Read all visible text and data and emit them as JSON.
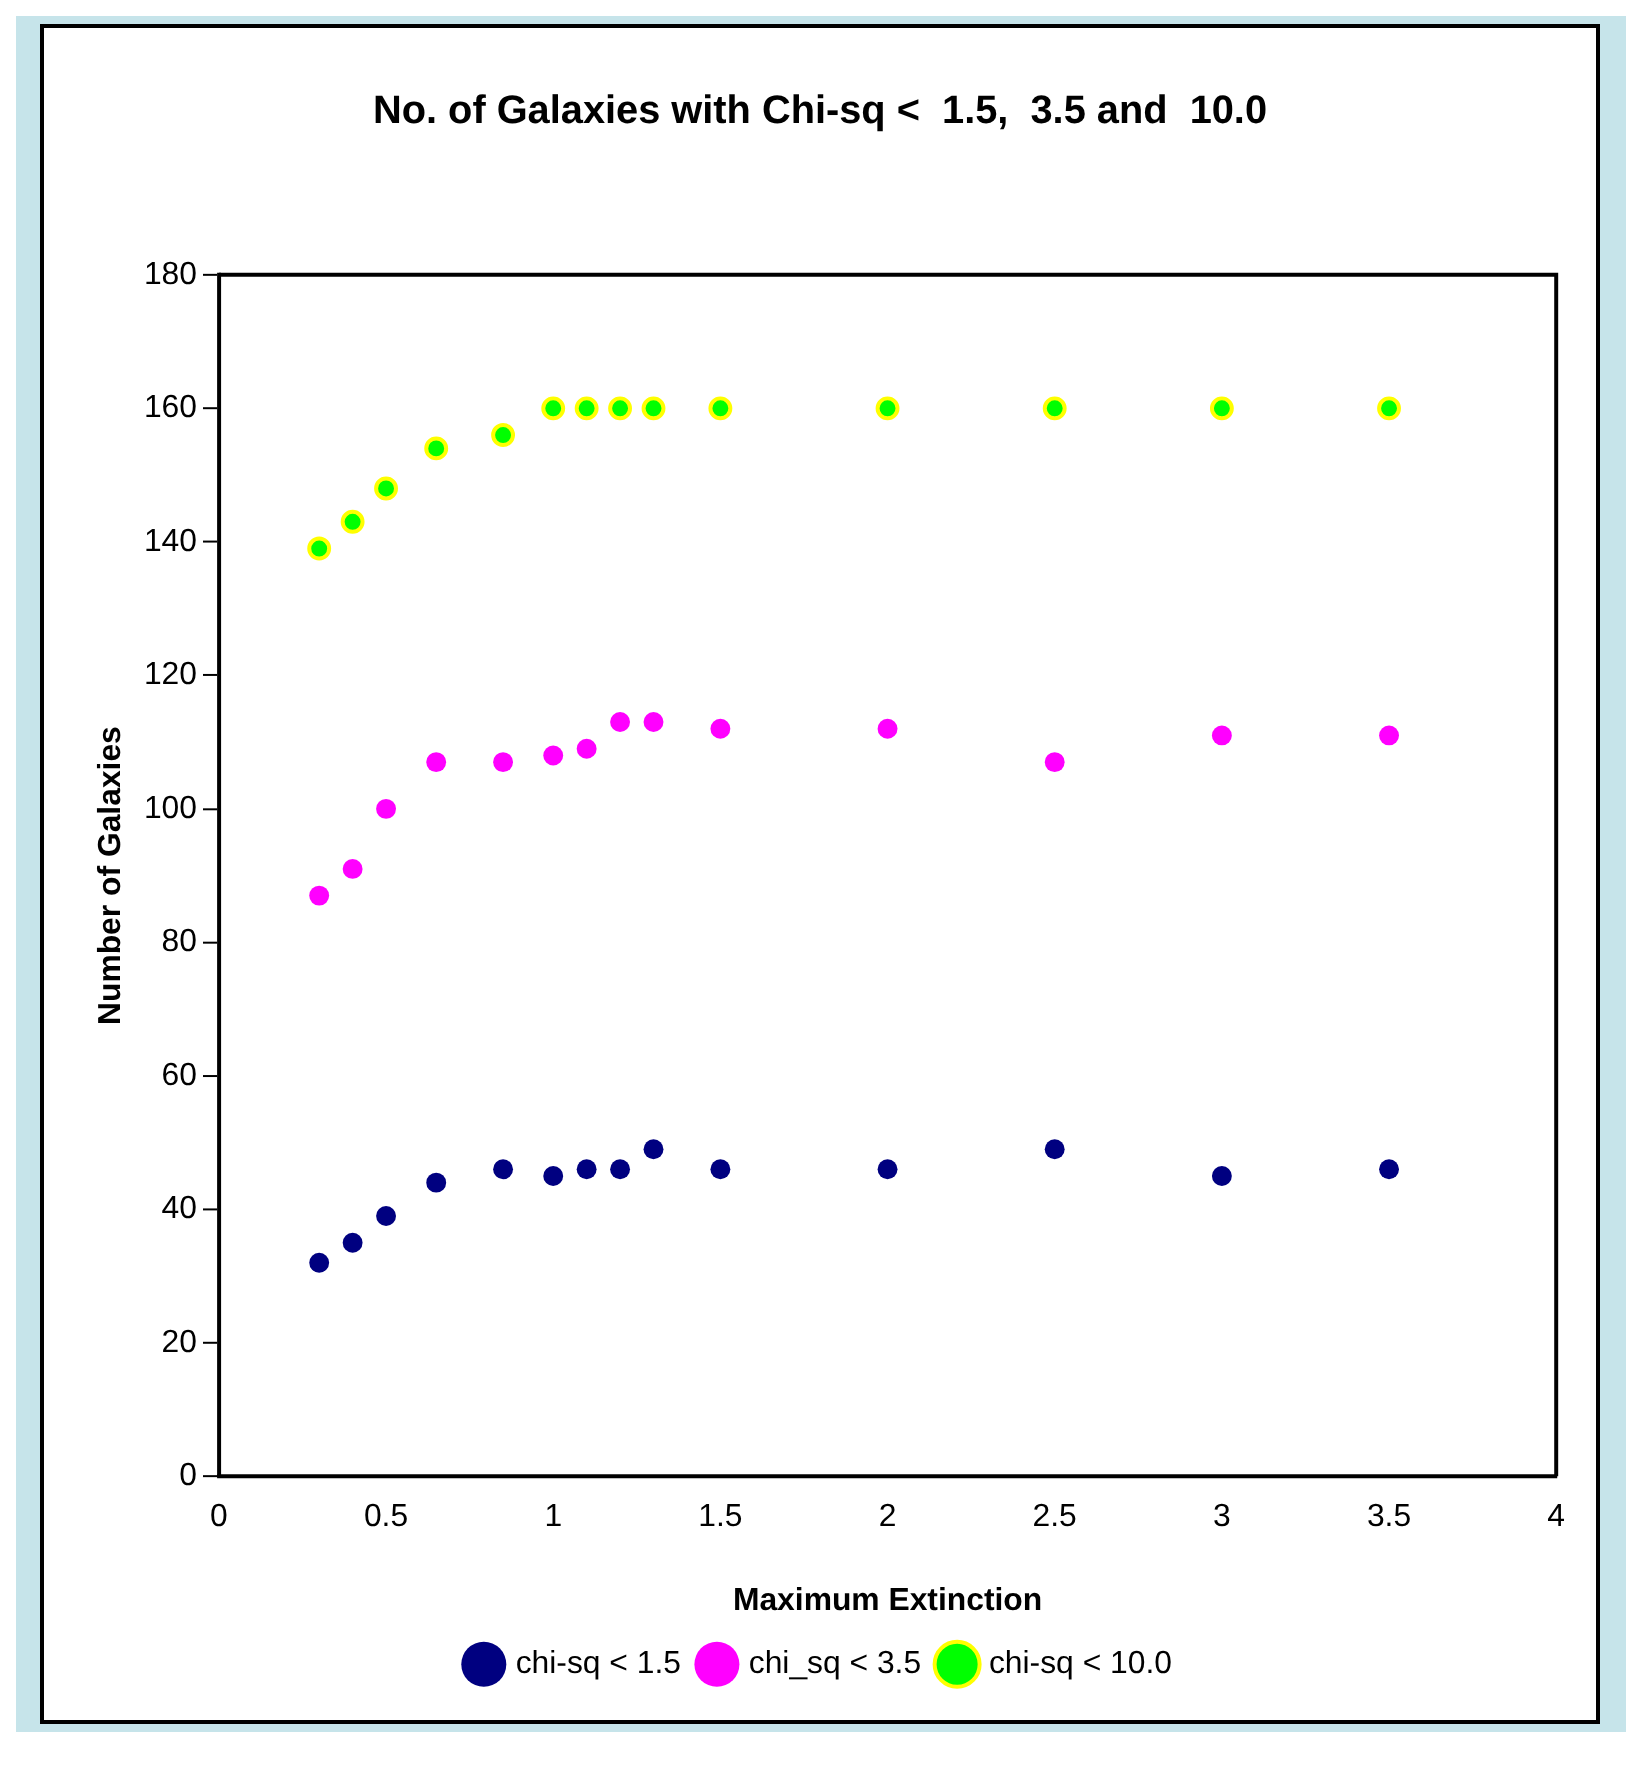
{
  "chart_data": {
    "type": "scatter",
    "title": "No. of Galaxies with Chi-sq <  1.5,  3.5 and  10.0",
    "xlabel": "Maximum Extinction",
    "ylabel": "Number of Galaxies",
    "x": [
      0.3,
      0.4,
      0.5,
      0.65,
      0.85,
      1.0,
      1.1,
      1.2,
      1.3,
      1.5,
      2.0,
      2.5,
      3.0,
      3.5
    ],
    "series": [
      {
        "name": "chi-sq < 1.5",
        "color": "#000080",
        "values": [
          32,
          35,
          39,
          44,
          46,
          45,
          46,
          46,
          49,
          46,
          46,
          49,
          45,
          46
        ]
      },
      {
        "name": "chi_sq < 3.5",
        "color": "#ff00ff",
        "values": [
          87,
          91,
          100,
          107,
          107,
          108,
          109,
          113,
          113,
          112,
          112,
          107,
          111,
          111
        ]
      },
      {
        "name": "chi-sq < 10.0",
        "color": "#00ff00",
        "values": [
          139,
          143,
          148,
          154,
          156,
          160,
          160,
          160,
          160,
          160,
          160,
          160,
          160,
          160
        ]
      }
    ],
    "xlim": [
      0,
      4
    ],
    "xticks": [
      0,
      0.5,
      1,
      1.5,
      2,
      2.5,
      3,
      3.5,
      4
    ],
    "ylim": [
      0,
      180
    ],
    "yticks": [
      0,
      20,
      40,
      60,
      80,
      100,
      120,
      140,
      160,
      180
    ],
    "grid": false,
    "legend": "bottom",
    "marker": "circle"
  }
}
